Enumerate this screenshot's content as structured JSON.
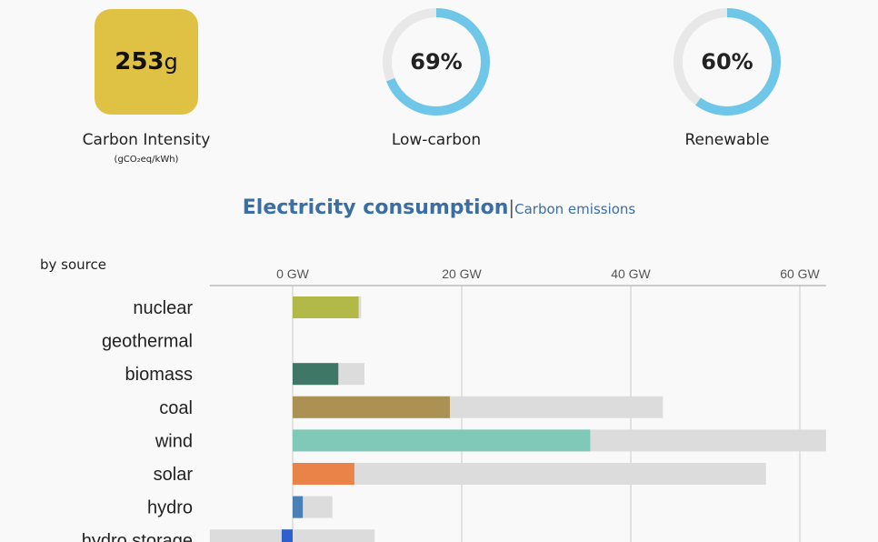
{
  "carbon_intensity": {
    "value": "253",
    "unit": "g",
    "label": "Carbon Intensity",
    "sublabel": "(gCO₂eq/kWh)",
    "color": "#dfc243"
  },
  "gauges": [
    {
      "value": "69%",
      "fraction": 0.69,
      "label": "Low-carbon"
    },
    {
      "value": "60%",
      "fraction": 0.6,
      "label": "Renewable"
    }
  ],
  "gauge_color": "#6ec6e8",
  "tabs": {
    "active": "Electricity consumption",
    "separator": "|",
    "inactive": "Carbon emissions"
  },
  "by_source_label": "by source",
  "chart_data": {
    "type": "bar",
    "orientation": "horizontal",
    "categories": [
      "nuclear",
      "geothermal",
      "biomass",
      "coal",
      "wind",
      "solar",
      "hydro",
      "hydro storage"
    ],
    "series": [
      {
        "name": "production",
        "values": [
          7.8,
          0,
          5.4,
          18.6,
          35.2,
          7.3,
          1.2,
          -1.3
        ]
      },
      {
        "name": "capacity",
        "values": [
          8.1,
          0,
          8.5,
          43.8,
          63.1,
          56.0,
          4.7,
          9.7
        ],
        "min_values": [
          0,
          0,
          0,
          0,
          0,
          0,
          0,
          -9.8
        ]
      }
    ],
    "colors": [
      "#b2b946",
      "#000000",
      "#3f7767",
      "#ab9254",
      "#80c9b9",
      "#ea8348",
      "#4a80b6",
      "#2d5fce"
    ],
    "capacity_color": "#dcdcdc",
    "xlim": [
      -9.8,
      63.1
    ],
    "x_ticks": [
      0,
      20,
      40,
      60
    ],
    "x_tick_labels": [
      "0 GW",
      "20 GW",
      "40 GW",
      "60 GW"
    ],
    "grid": true
  }
}
